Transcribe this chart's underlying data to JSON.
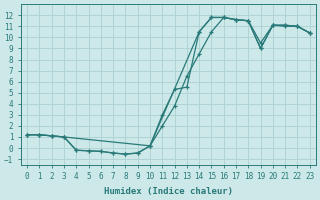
{
  "xlabel": "Humidex (Indice chaleur)",
  "xlim": [
    -0.5,
    23.5
  ],
  "ylim": [
    -1.5,
    13.0
  ],
  "xticks": [
    0,
    1,
    2,
    3,
    4,
    5,
    6,
    7,
    8,
    9,
    10,
    11,
    12,
    13,
    14,
    15,
    16,
    17,
    18,
    19,
    20,
    21,
    22,
    23
  ],
  "yticks": [
    -1,
    0,
    1,
    2,
    3,
    4,
    5,
    6,
    7,
    8,
    9,
    10,
    11,
    12
  ],
  "background_color": "#cce8e8",
  "grid_color": "#b0d4d4",
  "line_color": "#2a7a7a",
  "line_a_x": [
    0,
    1,
    2,
    3,
    10,
    11,
    12,
    13,
    14,
    15,
    16,
    17,
    18,
    19,
    20,
    21,
    22,
    23
  ],
  "line_a_y": [
    1.2,
    1.2,
    1.1,
    1.0,
    0.2,
    2.0,
    3.8,
    6.5,
    8.5,
    10.5,
    11.8,
    11.6,
    11.5,
    9.5,
    11.1,
    11.0,
    11.0,
    10.4
  ],
  "line_b_x": [
    0,
    1,
    2,
    3,
    4,
    5,
    6,
    7,
    8,
    9,
    10,
    11,
    12,
    13,
    14,
    15,
    16,
    17,
    18,
    19,
    20,
    21,
    22,
    23
  ],
  "line_b_y": [
    1.2,
    1.2,
    1.1,
    1.0,
    -0.2,
    -0.25,
    -0.3,
    -0.45,
    -0.55,
    -0.45,
    0.2,
    3.0,
    5.3,
    5.5,
    10.5,
    11.8,
    11.8,
    11.6,
    11.5,
    9.0,
    11.1,
    11.1,
    11.0,
    10.4
  ],
  "line_c_x": [
    0,
    1,
    2,
    3,
    4,
    5,
    6,
    7,
    8,
    9,
    10,
    14,
    15,
    16,
    17,
    18,
    19,
    20,
    21,
    22,
    23
  ],
  "line_c_y": [
    1.2,
    1.2,
    1.1,
    1.0,
    -0.2,
    -0.25,
    -0.3,
    -0.45,
    -0.55,
    -0.45,
    0.2,
    10.5,
    11.8,
    11.8,
    11.6,
    11.5,
    9.0,
    11.1,
    11.1,
    11.0,
    10.4
  ]
}
